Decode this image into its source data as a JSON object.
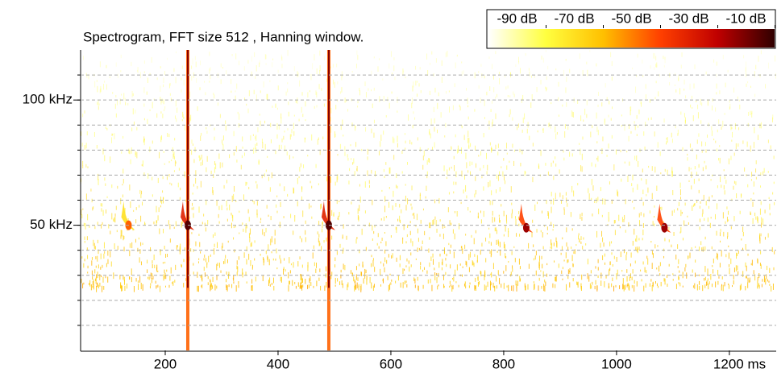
{
  "chart_data": {
    "type": "spectrogram",
    "title": "Spectrogram, FFT size 512 , Hanning window.",
    "xlim": [
      50,
      1283
    ],
    "xticks": [
      200,
      400,
      600,
      800,
      1000,
      {
        "value": 1200,
        "label": "1200 ms"
      }
    ],
    "ylim": [
      0,
      120
    ],
    "yticks": [
      {
        "value": 50,
        "label": "50 kHz"
      },
      {
        "value": 100,
        "label": "100 kHz"
      }
    ],
    "yminor": [
      10,
      20,
      30,
      40,
      50,
      60,
      70,
      80,
      90,
      100,
      110
    ],
    "grid": true,
    "clim": [
      -100,
      0
    ],
    "cticks": [
      {
        "value": -90,
        "label": "-90 dB"
      },
      {
        "value": -70,
        "label": "-70 dB"
      },
      {
        "value": -50,
        "label": "-50 dB"
      },
      {
        "value": -30,
        "label": "-30 dB"
      },
      {
        "value": -10,
        "label": "-10 dB"
      }
    ],
    "colormap": [
      "#ffffff",
      "#ffff40",
      "#ffc000",
      "#ff4000",
      "#c00000",
      "#300000"
    ],
    "events": {
      "x": [
        135,
        240,
        490,
        840,
        1085
      ],
      "values": [
        50,
        50,
        50,
        49,
        49
      ],
      "levels": [
        -45,
        -5,
        -5,
        -15,
        -15
      ]
    },
    "broadband": [
      240,
      490
    ]
  }
}
